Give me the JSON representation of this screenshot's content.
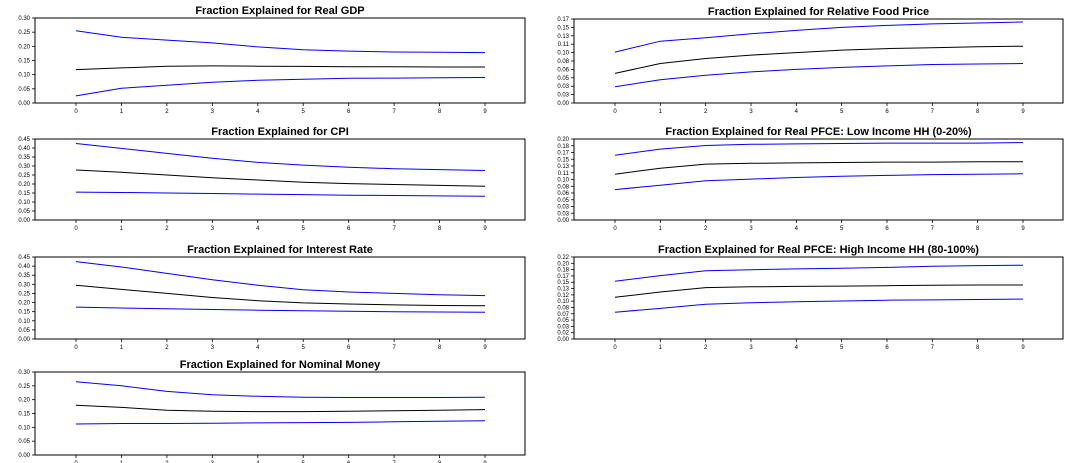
{
  "chart_data": [
    {
      "type": "line",
      "title": "Fraction Explained for Real GDP",
      "x": [
        0,
        1,
        2,
        3,
        4,
        5,
        6,
        7,
        8,
        9
      ],
      "ylim": [
        0,
        0.3
      ],
      "yticks": [
        "0.00",
        "0.05",
        "0.10",
        "0.15",
        "0.20",
        "0.25",
        "0.30"
      ],
      "series": [
        {
          "values": [
            0.255,
            0.232,
            0.222,
            0.212,
            0.198,
            0.188,
            0.183,
            0.18,
            0.179,
            0.178
          ],
          "color": "#0000ff"
        },
        {
          "values": [
            0.118,
            0.124,
            0.13,
            0.131,
            0.13,
            0.129,
            0.128,
            0.128,
            0.127,
            0.127
          ],
          "color": "#000000"
        },
        {
          "values": [
            0.025,
            0.052,
            0.063,
            0.073,
            0.08,
            0.084,
            0.087,
            0.088,
            0.089,
            0.09
          ],
          "color": "#0000ff"
        }
      ]
    },
    {
      "type": "line",
      "title": "Fraction Explained for Relative Food Price",
      "x": [
        0,
        1,
        2,
        3,
        4,
        5,
        6,
        7,
        8,
        9
      ],
      "ylim": [
        0,
        0.17
      ],
      "yticks": [
        "0.00",
        "0.03",
        "0.03",
        "0.05",
        "0.06",
        "0.08",
        "0.10",
        "0.11",
        "0.13",
        "0.15",
        "0.17"
      ],
      "series": [
        {
          "values": [
            0.103,
            0.125,
            0.132,
            0.14,
            0.147,
            0.153,
            0.157,
            0.16,
            0.162,
            0.164
          ],
          "color": "#0000ff"
        },
        {
          "values": [
            0.06,
            0.08,
            0.09,
            0.097,
            0.102,
            0.107,
            0.11,
            0.112,
            0.114,
            0.115
          ],
          "color": "#000000"
        },
        {
          "values": [
            0.033,
            0.047,
            0.056,
            0.063,
            0.068,
            0.072,
            0.075,
            0.078,
            0.079,
            0.08
          ],
          "color": "#0000ff"
        }
      ]
    },
    {
      "type": "line",
      "title": "Fraction Explained for CPI",
      "x": [
        0,
        1,
        2,
        3,
        4,
        5,
        6,
        7,
        8,
        9
      ],
      "ylim": [
        0,
        0.45
      ],
      "yticks": [
        "0.00",
        "0.05",
        "0.10",
        "0.15",
        "0.20",
        "0.25",
        "0.30",
        "0.35",
        "0.40",
        "0.45"
      ],
      "series": [
        {
          "values": [
            0.425,
            0.398,
            0.37,
            0.343,
            0.32,
            0.305,
            0.293,
            0.285,
            0.28,
            0.275
          ],
          "color": "#0000ff"
        },
        {
          "values": [
            0.278,
            0.265,
            0.25,
            0.235,
            0.222,
            0.21,
            0.202,
            0.197,
            0.192,
            0.188
          ],
          "color": "#000000"
        },
        {
          "values": [
            0.155,
            0.153,
            0.15,
            0.147,
            0.144,
            0.141,
            0.138,
            0.136,
            0.134,
            0.132
          ],
          "color": "#0000ff"
        }
      ]
    },
    {
      "type": "line",
      "title": "Fraction Explained for Real PFCE: Low Income HH (0-20%)",
      "x": [
        0,
        1,
        2,
        3,
        4,
        5,
        6,
        7,
        8,
        9
      ],
      "ylim": [
        0,
        0.2
      ],
      "yticks": [
        "0.00",
        "0.03",
        "0.03",
        "0.05",
        "0.06",
        "0.08",
        "0.10",
        "0.11",
        "0.13",
        "0.15",
        "0.17",
        "0.18",
        "0.20"
      ],
      "series": [
        {
          "values": [
            0.16,
            0.175,
            0.184,
            0.187,
            0.188,
            0.189,
            0.19,
            0.19,
            0.19,
            0.191
          ],
          "color": "#0000ff"
        },
        {
          "values": [
            0.113,
            0.128,
            0.138,
            0.14,
            0.141,
            0.142,
            0.143,
            0.143,
            0.144,
            0.144
          ],
          "color": "#000000"
        },
        {
          "values": [
            0.075,
            0.086,
            0.097,
            0.101,
            0.105,
            0.108,
            0.11,
            0.112,
            0.113,
            0.114
          ],
          "color": "#0000ff"
        }
      ]
    },
    {
      "type": "line",
      "title": "Fraction Explained for Interest Rate",
      "x": [
        0,
        1,
        2,
        3,
        4,
        5,
        6,
        7,
        8,
        9
      ],
      "ylim": [
        0,
        0.45
      ],
      "yticks": [
        "0.00",
        "0.05",
        "0.10",
        "0.15",
        "0.20",
        "0.25",
        "0.30",
        "0.35",
        "0.40",
        "0.45"
      ],
      "series": [
        {
          "values": [
            0.425,
            0.395,
            0.36,
            0.325,
            0.295,
            0.27,
            0.258,
            0.25,
            0.243,
            0.238
          ],
          "color": "#0000ff"
        },
        {
          "values": [
            0.295,
            0.272,
            0.25,
            0.228,
            0.21,
            0.198,
            0.192,
            0.187,
            0.184,
            0.182
          ],
          "color": "#000000"
        },
        {
          "values": [
            0.175,
            0.17,
            0.166,
            0.162,
            0.158,
            0.155,
            0.152,
            0.15,
            0.148,
            0.147
          ],
          "color": "#0000ff"
        }
      ]
    },
    {
      "type": "line",
      "title": "Fraction Explained for Real PFCE: High Income HH (80-100%)",
      "x": [
        0,
        1,
        2,
        3,
        4,
        5,
        6,
        7,
        8,
        9
      ],
      "ylim": [
        0,
        0.22
      ],
      "yticks": [
        "0.00",
        "0.02",
        "0.03",
        "0.05",
        "0.07",
        "0.08",
        "0.10",
        "0.12",
        "0.13",
        "0.15",
        "0.17",
        "0.18",
        "0.20",
        "0.22"
      ],
      "series": [
        {
          "values": [
            0.155,
            0.17,
            0.183,
            0.186,
            0.188,
            0.19,
            0.192,
            0.195,
            0.197,
            0.198
          ],
          "color": "#0000ff"
        },
        {
          "values": [
            0.112,
            0.126,
            0.138,
            0.14,
            0.141,
            0.142,
            0.143,
            0.144,
            0.145,
            0.145
          ],
          "color": "#000000"
        },
        {
          "values": [
            0.072,
            0.082,
            0.093,
            0.097,
            0.1,
            0.102,
            0.104,
            0.105,
            0.106,
            0.107
          ],
          "color": "#0000ff"
        }
      ]
    },
    {
      "type": "line",
      "title": "Fraction Explained for Nominal Money",
      "x": [
        0,
        1,
        2,
        3,
        4,
        5,
        6,
        7,
        8,
        9
      ],
      "ylim": [
        0,
        0.3
      ],
      "yticks": [
        "0.00",
        "0.05",
        "0.10",
        "0.15",
        "0.20",
        "0.25",
        "0.30"
      ],
      "series": [
        {
          "values": [
            0.265,
            0.25,
            0.23,
            0.218,
            0.212,
            0.209,
            0.208,
            0.208,
            0.208,
            0.209
          ],
          "color": "#0000ff"
        },
        {
          "values": [
            0.18,
            0.172,
            0.162,
            0.158,
            0.157,
            0.157,
            0.158,
            0.16,
            0.162,
            0.164
          ],
          "color": "#000000"
        },
        {
          "values": [
            0.112,
            0.114,
            0.114,
            0.115,
            0.116,
            0.117,
            0.118,
            0.12,
            0.122,
            0.124
          ],
          "color": "#0000ff"
        }
      ]
    }
  ]
}
